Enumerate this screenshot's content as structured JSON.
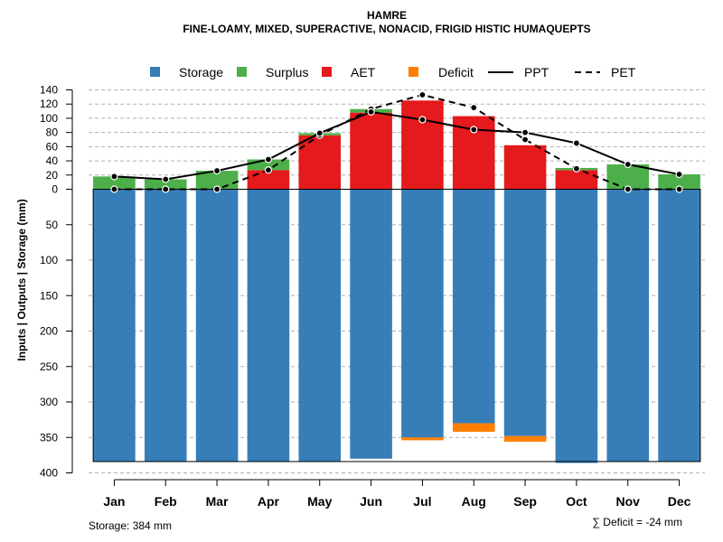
{
  "chart_data": {
    "type": "bar",
    "title": "HAMRE",
    "subtitle": "FINE-LOAMY, MIXED, SUPERACTIVE, NONACID, FRIGID HISTIC HUMAQUEPTS",
    "ylabel": "Inputs | Outputs | Storage     (mm)",
    "upper_ticks": [
      0,
      20,
      40,
      60,
      80,
      100,
      120,
      140
    ],
    "lower_ticks": [
      50,
      100,
      150,
      200,
      250,
      300,
      350,
      400
    ],
    "ylim_upper": [
      0,
      140
    ],
    "ylim_lower": [
      0,
      400
    ],
    "categories": [
      "Jan",
      "Feb",
      "Mar",
      "Apr",
      "May",
      "Jun",
      "Jul",
      "Aug",
      "Sep",
      "Oct",
      "Nov",
      "Dec"
    ],
    "legend": [
      {
        "key": "storage",
        "label": "Storage",
        "type": "swatch",
        "color": "#377EB8"
      },
      {
        "key": "surplus",
        "label": "Surplus",
        "type": "swatch",
        "color": "#4DAF4A"
      },
      {
        "key": "aet",
        "label": "AET",
        "type": "swatch",
        "color": "#E41A1C"
      },
      {
        "key": "deficit",
        "label": "Deficit",
        "type": "swatch",
        "color": "#FF7F00"
      },
      {
        "key": "ppt",
        "label": "PPT",
        "type": "solid-line",
        "color": "#000000"
      },
      {
        "key": "pet",
        "label": "PET",
        "type": "dashed-line",
        "color": "#000000"
      }
    ],
    "series": {
      "aet": [
        0,
        0,
        0,
        27,
        76,
        108,
        125,
        103,
        62,
        27,
        0,
        0
      ],
      "surplus": [
        18,
        14,
        26,
        15,
        3,
        5,
        0,
        0,
        0,
        3,
        35,
        21
      ],
      "storage": [
        384,
        384,
        384,
        384,
        384,
        380,
        350,
        330,
        348,
        386,
        384,
        384
      ],
      "deficit": [
        0,
        0,
        0,
        0,
        0,
        0,
        4,
        12,
        8,
        0,
        0,
        0
      ],
      "ppt": [
        18,
        14,
        26,
        42,
        79,
        109,
        98,
        84,
        80,
        65,
        35,
        21
      ],
      "pet": [
        0,
        0,
        0,
        27,
        76,
        113,
        133,
        115,
        70,
        29,
        0,
        0
      ]
    },
    "storage_capacity": 384
  },
  "footer": {
    "storage_label": "Storage: 384 mm",
    "deficit_label": "∑ Deficit = -24 mm"
  }
}
